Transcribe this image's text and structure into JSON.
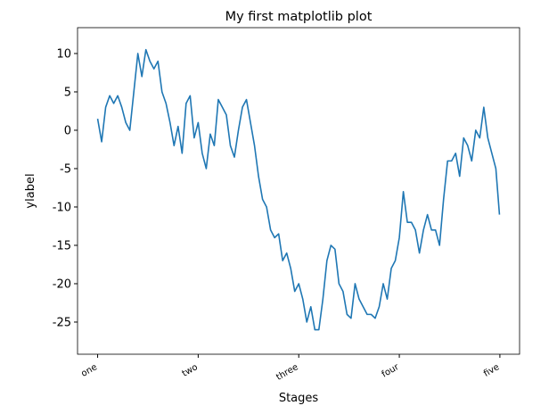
{
  "chart_data": {
    "type": "line",
    "title": "My first matplotlib plot",
    "xlabel": "Stages",
    "ylabel": "ylabel",
    "x": [
      0,
      10,
      20,
      30,
      40,
      50,
      60,
      70,
      80,
      90,
      100,
      110,
      120,
      130,
      140,
      150,
      160,
      170,
      180,
      190,
      200,
      210,
      220,
      230,
      240,
      250,
      260,
      270,
      280,
      290,
      300,
      310,
      320,
      330,
      340,
      350,
      360,
      370,
      380,
      390,
      400,
      410,
      420,
      430,
      440,
      450,
      460,
      470,
      480,
      490,
      500,
      510,
      520,
      530,
      540,
      550,
      560,
      570,
      580,
      590,
      600,
      610,
      620,
      630,
      640,
      650,
      660,
      670,
      680,
      690,
      700,
      710,
      720,
      730,
      740,
      750,
      760,
      770,
      780,
      790,
      800,
      810,
      820,
      830,
      840,
      850,
      860,
      870,
      880,
      890,
      900,
      910,
      920,
      930,
      940,
      950,
      960,
      970,
      980,
      990,
      999
    ],
    "series": [
      {
        "color": "#1f77b4",
        "values": [
          1.5,
          -1.5,
          3,
          4.5,
          3.5,
          4.5,
          3,
          1,
          0,
          5,
          10,
          7,
          10.5,
          9,
          8,
          9,
          5,
          3.5,
          1,
          -2,
          0.5,
          -3,
          3.5,
          4.5,
          -1,
          1,
          -3,
          -5,
          -0.5,
          -2,
          4,
          3,
          2,
          -2,
          -3.5,
          0,
          3,
          4,
          1,
          -2,
          -6,
          -9,
          -10,
          -13,
          -14,
          -13.5,
          -17,
          -16,
          -18,
          -21,
          -20,
          -22,
          -25,
          -23,
          -26,
          -26,
          -22,
          -17,
          -15,
          -15.5,
          -20,
          -21,
          -24,
          -24.5,
          -20,
          -22,
          -23,
          -24,
          -24,
          -24.5,
          -23,
          -20,
          -22,
          -18,
          -17,
          -14,
          -8,
          -12,
          -12,
          -13,
          -16,
          -13,
          -11,
          -13,
          -13,
          -15,
          -9,
          -4,
          -4,
          -3,
          -6,
          -1,
          -2,
          -4,
          0,
          -1,
          3,
          -1,
          -3,
          -5,
          -11
        ]
      }
    ],
    "xlim": [
      -49.95,
      1048.95
    ],
    "ylim": [
      -29.19,
      13.37
    ],
    "xticks": [
      {
        "value": 0,
        "label": "one"
      },
      {
        "value": 250,
        "label": "two"
      },
      {
        "value": 500,
        "label": "three"
      },
      {
        "value": 750,
        "label": "four"
      },
      {
        "value": 1000,
        "label": "five"
      }
    ],
    "yticks": [
      -25,
      -20,
      -15,
      -10,
      -5,
      0,
      5,
      10
    ]
  }
}
